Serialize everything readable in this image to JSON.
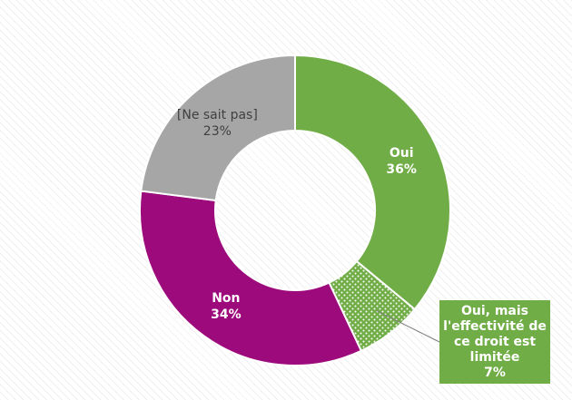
{
  "chart_data": {
    "type": "pie",
    "variant": "donut",
    "title": "",
    "slices": [
      {
        "label": "Oui",
        "value_text": "36%",
        "value": 36,
        "color": "#70ad47",
        "pattern": "solid",
        "label_color": "#ffffff",
        "label_bold": true
      },
      {
        "label": "Oui, mais l'effectivité de ce droit est limitée",
        "value_text": "7%",
        "value": 7,
        "color": "#70ad47",
        "pattern": "dotted",
        "label_color": "#ffffff",
        "label_bold": true,
        "callout": true
      },
      {
        "label": "Non",
        "value_text": "34%",
        "value": 34,
        "color": "#9c0a7c",
        "pattern": "solid",
        "label_color": "#ffffff",
        "label_bold": true
      },
      {
        "label": "[Ne sait pas]",
        "value_text": "23%",
        "value": 23,
        "color": "#a6a6a6",
        "pattern": "solid",
        "label_color": "#404040",
        "label_bold": false
      }
    ],
    "callout_lines": [
      "Oui, mais",
      "l'effectivité de",
      "ce droit est",
      "limitée",
      "7%"
    ]
  }
}
